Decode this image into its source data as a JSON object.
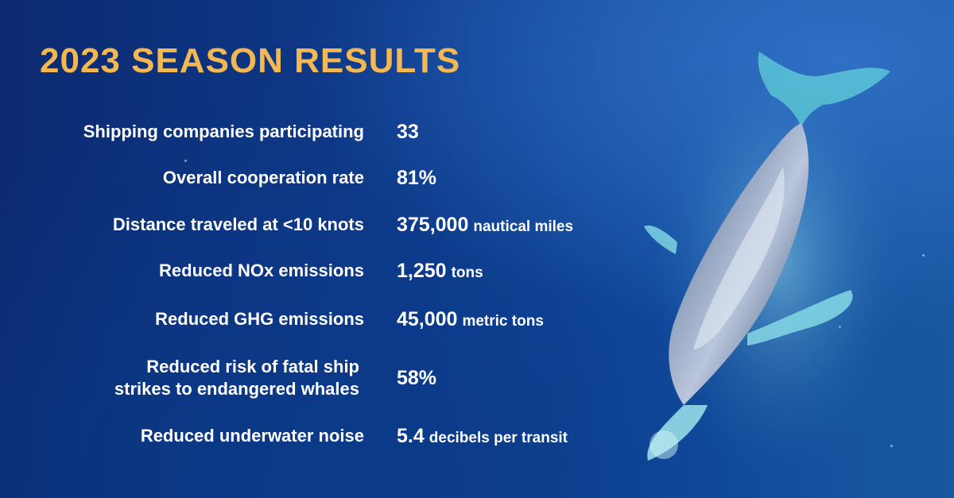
{
  "title": "2023 SEASON RESULTS",
  "colors": {
    "title": "#f3b851",
    "text": "#ffffff",
    "background": "#0f3c8e"
  },
  "rows": [
    {
      "label": "Shipping companies participating",
      "value": "33",
      "unit": ""
    },
    {
      "label": "Overall cooperation rate",
      "value": "81%",
      "unit": ""
    },
    {
      "label": "Distance traveled at <10 knots",
      "value": "375,000",
      "unit": "nautical miles"
    },
    {
      "label": "Reduced NOx emissions",
      "value": "1,250",
      "unit": "tons"
    },
    {
      "label": "Reduced GHG emissions",
      "value": "45,000",
      "unit": "metric tons"
    },
    {
      "label_line1": "Reduced risk of fatal ship",
      "label_line2": "strikes to endangered whales",
      "value": "58%",
      "unit": ""
    },
    {
      "label": "Reduced underwater noise",
      "value": "5.4",
      "unit": "decibels per transit"
    }
  ],
  "image": {
    "subject": "humpback-whale"
  }
}
